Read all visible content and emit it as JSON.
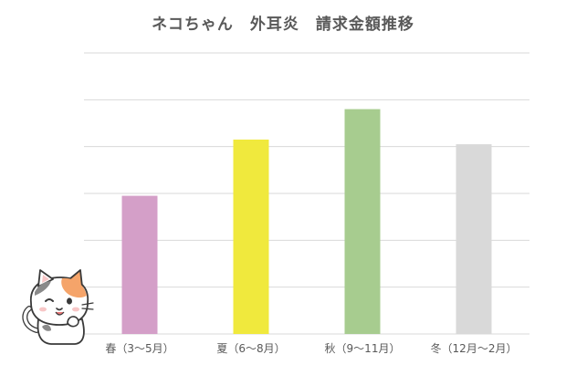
{
  "chart_data": {
    "type": "bar",
    "title": "ネコちゃん　外耳炎　請求金額推移",
    "xlabel": "",
    "ylabel": "",
    "categories": [
      "春（3～5月）",
      "夏（6～8月）",
      "秋（9～11月）",
      "冬（12月～2月）"
    ],
    "series": [
      {
        "values": [
          2.95,
          4.15,
          4.8,
          4.05
        ]
      }
    ],
    "ylim": [
      0,
      6
    ],
    "y_ticks": [
      0,
      1,
      2,
      3,
      4,
      5,
      6
    ],
    "y_tick_labels_visible": false,
    "grid": true,
    "legend": "none",
    "colors": [
      "#d49fc8",
      "#f0e93d",
      "#a7cc8f",
      "#d9d9d9"
    ]
  },
  "decoration": {
    "mascot_icon": "calico-cat-icon"
  }
}
